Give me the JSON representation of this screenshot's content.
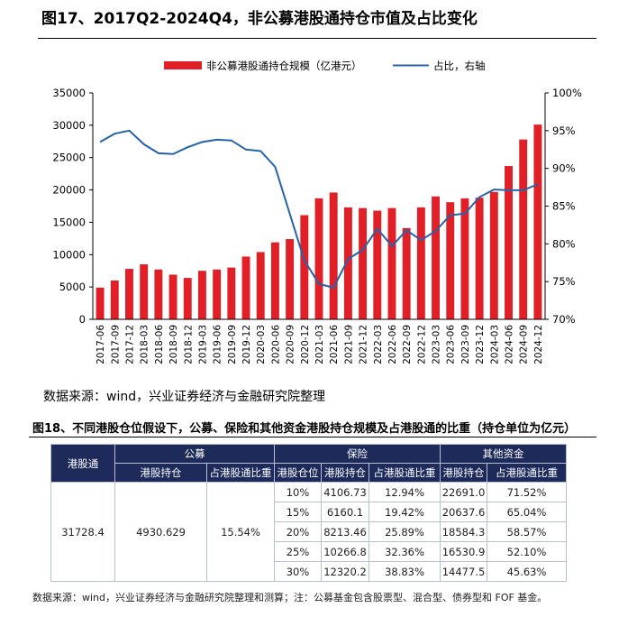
{
  "figure17": {
    "title": "图17、2017Q2-2024Q4，非公募港股通持仓市值及占比变化",
    "source": "数据来源：wind，兴业证券经济与金融研究院整理"
  },
  "chart_data": {
    "type": "bar",
    "categories": [
      "2017-06",
      "2017-09",
      "2017-12",
      "2018-03",
      "2018-06",
      "2018-09",
      "2018-12",
      "2019-03",
      "2019-06",
      "2019-09",
      "2019-12",
      "2020-03",
      "2020-06",
      "2020-09",
      "2020-12",
      "2021-03",
      "2021-06",
      "2021-09",
      "2021-12",
      "2022-03",
      "2022-06",
      "2022-09",
      "2022-12",
      "2023-03",
      "2023-06",
      "2023-09",
      "2023-12",
      "2024-03",
      "2024-06",
      "2024-09",
      "2024-12"
    ],
    "series": [
      {
        "name": "非公募港股通持仓规模（亿港元）",
        "type": "bar",
        "axis": "left",
        "values": [
          4900,
          6000,
          7800,
          8500,
          7700,
          6900,
          6400,
          7500,
          7700,
          8000,
          9700,
          10400,
          11900,
          12400,
          16100,
          18700,
          19600,
          17300,
          17200,
          16800,
          17200,
          14100,
          17300,
          19000,
          18100,
          18700,
          18800,
          19700,
          23700,
          27800,
          30100
        ]
      },
      {
        "name": "占比，右轴",
        "type": "line",
        "axis": "right",
        "values": [
          93.5,
          94.6,
          95.0,
          93.2,
          92.0,
          91.9,
          92.8,
          93.5,
          93.8,
          93.7,
          92.5,
          92.3,
          90.2,
          84.0,
          77.8,
          74.7,
          74.2,
          78.0,
          79.2,
          82.0,
          79.7,
          81.8,
          80.5,
          81.7,
          83.8,
          84.0,
          86.2,
          87.2,
          87.1,
          87.1,
          87.9
        ]
      }
    ],
    "yaxis_left": {
      "min": 0,
      "max": 35000,
      "ticks": [
        "0",
        "5000",
        "10000",
        "15000",
        "20000",
        "25000",
        "30000",
        "35000"
      ]
    },
    "yaxis_right": {
      "min": 70,
      "max": 100,
      "ticks": [
        "70%",
        "75%",
        "80%",
        "85%",
        "90%",
        "95%",
        "100%"
      ]
    },
    "legend_position": "top-center",
    "grid": false,
    "colors": {
      "bar": "#e01f26",
      "line": "#2463aa"
    }
  },
  "figure18": {
    "title": "图18、不同港股仓位假设下，公募、保险和其他资金港股持仓规模及占港股通的比重（持仓单位为亿元）",
    "header_top": {
      "ggt": "港股通",
      "public": "公募",
      "insurance": "保险",
      "other": "其他资金"
    },
    "header_sub": {
      "public_holding": "港股持仓",
      "public_share": "占港股通比重",
      "ins_position": "港股仓位",
      "ins_holding": "港股持仓",
      "ins_share": "占港股通比重",
      "oth_holding": "港股持仓",
      "oth_share": "占港股通比重"
    },
    "fixed": {
      "ggt": "31728.4",
      "public_holding": "4930.629",
      "public_share": "15.54%"
    },
    "rows": [
      {
        "position": "10%",
        "ins_holding": "4106.73",
        "ins_share": "12.94%",
        "oth_holding": "22691.0",
        "oth_share": "71.52%"
      },
      {
        "position": "15%",
        "ins_holding": "6160.1",
        "ins_share": "19.42%",
        "oth_holding": "20637.6",
        "oth_share": "65.04%"
      },
      {
        "position": "20%",
        "ins_holding": "8213.46",
        "ins_share": "25.89%",
        "oth_holding": "18584.3",
        "oth_share": "58.57%"
      },
      {
        "position": "25%",
        "ins_holding": "10266.8",
        "ins_share": "32.36%",
        "oth_holding": "16530.9",
        "oth_share": "52.10%"
      },
      {
        "position": "30%",
        "ins_holding": "12320.2",
        "ins_share": "38.83%",
        "oth_holding": "14477.5",
        "oth_share": "45.63%"
      }
    ],
    "source": "数据来源：wind，兴业证券经济与金融研究院整理和测算；注：公募基金包含股票型、混合型、债券型和 FOF 基金。"
  }
}
